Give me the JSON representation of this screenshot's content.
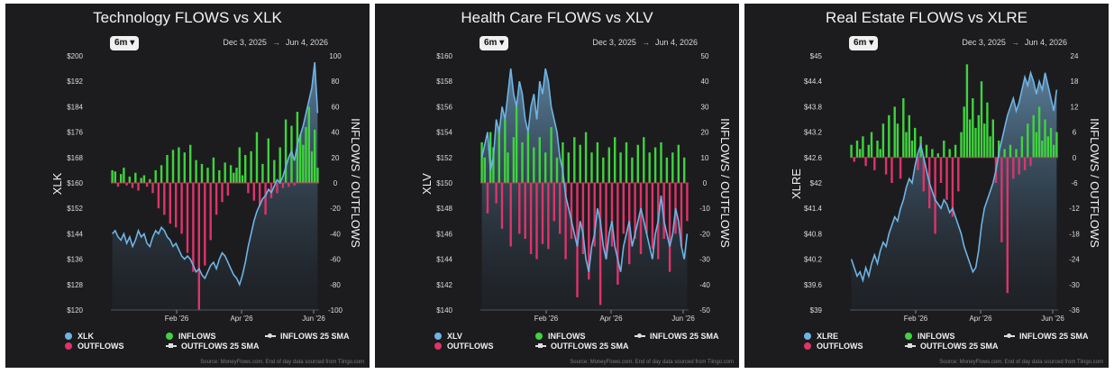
{
  "panels": [
    {
      "title": "Technology FLOWS vs XLK",
      "range_button": "6m",
      "date_start": "Dec 3, 2025",
      "date_end": "Jun 4, 2026",
      "legend": {
        "price": "XLK",
        "inflows": "INFLOWS",
        "outflows": "OUTFLOWS",
        "inflows_sma": "INFLOWS 25 SMA",
        "outflows_sma": "OUTFLOWS 25 SMA"
      },
      "source": "Source: MoneyFlows.com. End of day data sourced from Tiingo.com"
    },
    {
      "title": "Health Care FLOWS vs XLV",
      "range_button": "6m",
      "date_start": "Dec 3, 2025",
      "date_end": "Jun 4, 2026",
      "legend": {
        "price": "XLV",
        "inflows": "INFLOWS",
        "outflows": "OUTFLOWS",
        "inflows_sma": "INFLOWS 25 SMA",
        "outflows_sma": "OUTFLOWS 25 SMA"
      },
      "source": "Source: MoneyFlows.com. End of day data sourced from Tiingo.com"
    },
    {
      "title": "Real Estate FLOWS vs XLRE",
      "range_button": "6m",
      "date_start": "Dec 3, 2025",
      "date_end": "Jun 4, 2026",
      "legend": {
        "price": "XLRE",
        "inflows": "INFLOWS",
        "outflows": "OUTFLOWS",
        "inflows_sma": "INFLOWS 25 SMA",
        "outflows_sma": "OUTFLOWS 25 SMA"
      },
      "source": "Source: MoneyFlows.com. End of day data sourced from Tiingo.com"
    }
  ],
  "colors": {
    "background": "#1c1c1e",
    "price": "#6eb4e4",
    "inflows": "#3fd33f",
    "outflows": "#e0336a"
  },
  "chart_data": [
    {
      "type": "line",
      "title": "Technology FLOWS vs XLK",
      "xlabel": "",
      "ylabel": "XLK",
      "y2label": "INFLOWS / OUTFLOWS",
      "x_ticks": [
        "Feb '26",
        "Apr '26",
        "Jun '26"
      ],
      "y_ticks": [
        "$200",
        "$192",
        "$184",
        "$176",
        "$168",
        "$160",
        "$152",
        "$144",
        "$136",
        "$128",
        "$120"
      ],
      "y_range": [
        120,
        200
      ],
      "y2_ticks": [
        "100",
        "80",
        "60",
        "40",
        "20",
        "0",
        "-20",
        "-40",
        "-60",
        "-80",
        "-100"
      ],
      "y2_range": [
        -100,
        100
      ],
      "price_series": {
        "name": "XLK",
        "values": [
          144,
          145,
          143,
          142,
          144,
          141,
          143,
          140,
          142,
          145,
          143,
          144,
          141,
          140,
          143,
          145,
          144,
          146,
          145,
          143,
          142,
          140,
          141,
          139,
          137,
          136,
          137,
          136,
          134,
          132,
          133,
          131,
          130,
          132,
          134,
          135,
          133,
          136,
          138,
          137,
          135,
          133,
          131,
          130,
          128,
          131,
          135,
          140,
          144,
          148,
          151,
          153,
          155,
          156,
          158,
          157,
          159,
          161,
          160,
          162,
          165,
          168,
          170,
          167,
          172,
          175,
          178,
          182,
          186,
          190,
          198,
          182
        ]
      },
      "flow_series": {
        "name": "FLOWS",
        "values": [
          10,
          9,
          -3,
          7,
          12,
          -2,
          5,
          -4,
          8,
          -6,
          4,
          6,
          -3,
          3,
          -8,
          10,
          -20,
          14,
          -25,
          22,
          -32,
          26,
          -35,
          28,
          -40,
          24,
          -55,
          30,
          -70,
          18,
          -100,
          15,
          -65,
          12,
          -45,
          20,
          -25,
          10,
          -15,
          16,
          -10,
          14,
          8,
          12,
          28,
          6,
          22,
          -8,
          25,
          -14,
          40,
          -18,
          15,
          -25,
          35,
          -12,
          18,
          -8,
          28,
          -4,
          50,
          -3,
          45,
          -2,
          56,
          38,
          30,
          44,
          60,
          25,
          42,
          12
        ]
      }
    },
    {
      "type": "line",
      "title": "Health Care FLOWS vs XLV",
      "xlabel": "",
      "ylabel": "XLV",
      "y2label": "INFLOWS / OUTFLOWS",
      "x_ticks": [
        "Feb '26",
        "Apr '26",
        "Jun '26"
      ],
      "y_ticks": [
        "$160",
        "$158",
        "$156",
        "$154",
        "$152",
        "$150",
        "$148",
        "$146",
        "$144",
        "$142",
        "$140"
      ],
      "y_range": [
        140,
        160
      ],
      "y2_ticks": [
        "50",
        "40",
        "30",
        "20",
        "10",
        "0",
        "-10",
        "-20",
        "-30",
        "-40",
        "-50"
      ],
      "y2_range": [
        -50,
        50
      ],
      "price_series": {
        "name": "XLV",
        "values": [
          152,
          153,
          154,
          151,
          152,
          155,
          154,
          156,
          155,
          157,
          159,
          157,
          156,
          158,
          157,
          155,
          154,
          156,
          157,
          155,
          158,
          157,
          159,
          158,
          156,
          155,
          154,
          152,
          151,
          149,
          148,
          147,
          146,
          145,
          147,
          146,
          144,
          143,
          145,
          146,
          148,
          147,
          145,
          144,
          146,
          147,
          145,
          144,
          143,
          145,
          146,
          147,
          145,
          146,
          147,
          148,
          147,
          146,
          145,
          144,
          146,
          147,
          149,
          147,
          146,
          145,
          146,
          148,
          147,
          145,
          144,
          146
        ]
      },
      "flow_series": {
        "name": "FLOWS",
        "values": [
          16,
          10,
          -12,
          20,
          14,
          -8,
          22,
          -18,
          25,
          12,
          -25,
          18,
          30,
          -20,
          16,
          -22,
          20,
          -28,
          14,
          -30,
          18,
          -24,
          12,
          -26,
          22,
          -15,
          10,
          -20,
          16,
          -30,
          12,
          -22,
          18,
          -45,
          15,
          -28,
          20,
          -38,
          12,
          -25,
          16,
          -48,
          10,
          -30,
          14,
          -25,
          18,
          -40,
          12,
          -20,
          16,
          -32,
          10,
          -22,
          15,
          -28,
          18,
          -20,
          12,
          -26,
          14,
          -30,
          16,
          -22,
          10,
          -35,
          12,
          -20,
          15,
          -25,
          10,
          -15
        ]
      }
    },
    {
      "type": "line",
      "title": "Real Estate FLOWS vs XLRE",
      "xlabel": "",
      "ylabel": "XLRE",
      "y2label": "INFLOWS / OUTFLOWS",
      "x_ticks": [
        "Feb '26",
        "Apr '26",
        "Jun '26"
      ],
      "y_ticks": [
        "$45",
        "$44.4",
        "$43.8",
        "$43.2",
        "$42.6",
        "$42",
        "$41.4",
        "$40.8",
        "$40.2",
        "$39.6",
        "$39"
      ],
      "y_range": [
        39,
        45
      ],
      "y2_ticks": [
        "24",
        "18",
        "12",
        "6",
        "0",
        "-6",
        "-12",
        "-18",
        "-24",
        "-30",
        "-36"
      ],
      "y2_range": [
        -36,
        24
      ],
      "price_series": {
        "name": "XLRE",
        "values": [
          40.2,
          40.0,
          39.8,
          39.9,
          39.7,
          40.0,
          39.8,
          40.1,
          40.3,
          40.1,
          40.4,
          40.6,
          40.5,
          40.8,
          41.0,
          41.2,
          41.1,
          41.4,
          41.6,
          41.9,
          42.1,
          42.0,
          42.4,
          42.7,
          42.9,
          42.6,
          42.3,
          42.0,
          41.8,
          41.6,
          41.5,
          41.4,
          41.6,
          41.5,
          41.3,
          41.4,
          41.2,
          41.0,
          40.8,
          40.5,
          40.3,
          40.1,
          39.9,
          40.0,
          40.4,
          41.0,
          41.4,
          41.6,
          41.8,
          42.0,
          42.3,
          42.7,
          43.0,
          43.3,
          43.6,
          43.8,
          44.0,
          43.7,
          43.9,
          44.2,
          44.5,
          44.3,
          44.6,
          44.4,
          44.1,
          44.4,
          44.2,
          44.6,
          44.3,
          44.0,
          43.7,
          44.2
        ]
      },
      "flow_series": {
        "name": "FLOWS",
        "values": [
          3,
          -1,
          4,
          2,
          5,
          -2,
          3,
          6,
          -3,
          4,
          2,
          8,
          -4,
          10,
          -6,
          12,
          8,
          -5,
          14,
          6,
          10,
          4,
          7,
          -3,
          5,
          -8,
          3,
          -12,
          2,
          -18,
          1,
          -6,
          4,
          -10,
          2,
          -14,
          3,
          -8,
          6,
          12,
          22,
          9,
          14,
          7,
          10,
          18,
          8,
          13,
          5,
          9,
          -6,
          4,
          -20,
          2,
          -32,
          3,
          -5,
          2,
          -4,
          5,
          -3,
          8,
          -2,
          10,
          6,
          12,
          4,
          9,
          5,
          7,
          3,
          6
        ]
      }
    }
  ]
}
